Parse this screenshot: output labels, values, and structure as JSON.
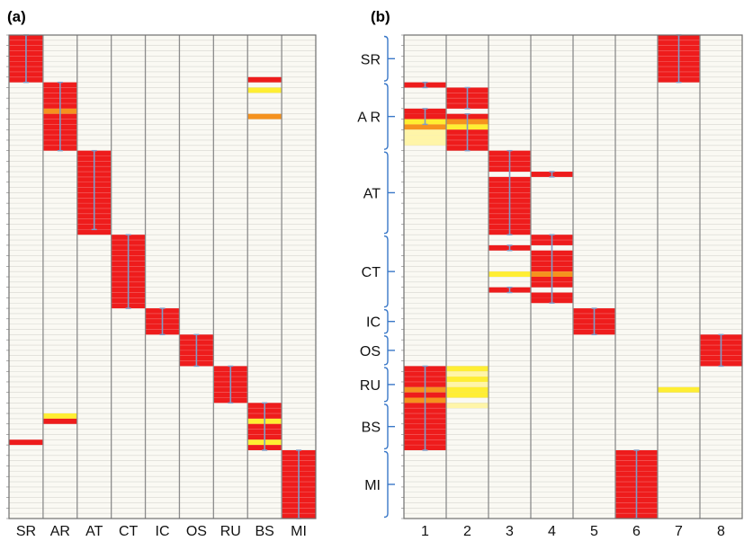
{
  "colors": {
    "background": "#faf9f3",
    "row_line": "#d6d6d0",
    "column_line": "#8c8c8c",
    "frame": "#6e6e6e",
    "strong": "#ee1c1c",
    "medium": "#f5921e",
    "weak": "#ffee33",
    "faint": "#fff5a8",
    "marker": "#7f9cc8",
    "bracket": "#3a78c8"
  },
  "chart_data": [
    {
      "type": "heatmap",
      "panel": "(a)",
      "columns": [
        "SR",
        "AR",
        "AT",
        "CT",
        "IC",
        "OS",
        "RU",
        "BS",
        "MI"
      ],
      "n_rows": 92,
      "cells": [
        {
          "col": 0,
          "rows": [
            0,
            8
          ],
          "level": "strong"
        },
        {
          "col": 0,
          "rows": [
            77,
            77
          ],
          "level": "strong"
        },
        {
          "col": 1,
          "rows": [
            9,
            13
          ],
          "level": "strong"
        },
        {
          "col": 1,
          "rows": [
            14,
            14
          ],
          "level": "medium"
        },
        {
          "col": 1,
          "rows": [
            15,
            21
          ],
          "level": "strong"
        },
        {
          "col": 1,
          "rows": [
            72,
            72
          ],
          "level": "weak"
        },
        {
          "col": 1,
          "rows": [
            73,
            73
          ],
          "level": "strong"
        },
        {
          "col": 2,
          "rows": [
            22,
            37
          ],
          "level": "strong"
        },
        {
          "col": 3,
          "rows": [
            38,
            51
          ],
          "level": "strong"
        },
        {
          "col": 4,
          "rows": [
            52,
            56
          ],
          "level": "strong"
        },
        {
          "col": 5,
          "rows": [
            57,
            62
          ],
          "level": "strong"
        },
        {
          "col": 6,
          "rows": [
            63,
            69
          ],
          "level": "strong"
        },
        {
          "col": 7,
          "rows": [
            8,
            8
          ],
          "level": "strong"
        },
        {
          "col": 7,
          "rows": [
            10,
            10
          ],
          "level": "weak"
        },
        {
          "col": 7,
          "rows": [
            15,
            15
          ],
          "level": "medium"
        },
        {
          "col": 7,
          "rows": [
            70,
            72
          ],
          "level": "strong"
        },
        {
          "col": 7,
          "rows": [
            73,
            73
          ],
          "level": "weak"
        },
        {
          "col": 7,
          "rows": [
            74,
            76
          ],
          "level": "strong"
        },
        {
          "col": 7,
          "rows": [
            77,
            77
          ],
          "level": "weak"
        },
        {
          "col": 7,
          "rows": [
            78,
            78
          ],
          "level": "strong"
        },
        {
          "col": 8,
          "rows": [
            79,
            91
          ],
          "level": "strong"
        }
      ],
      "markers": [
        {
          "col": 0,
          "rows": [
            0,
            9
          ]
        },
        {
          "col": 1,
          "rows": [
            9,
            22
          ]
        },
        {
          "col": 2,
          "rows": [
            22,
            37
          ]
        },
        {
          "col": 3,
          "rows": [
            38,
            52
          ]
        },
        {
          "col": 4,
          "rows": [
            52,
            57
          ]
        },
        {
          "col": 5,
          "rows": [
            57,
            63
          ]
        },
        {
          "col": 6,
          "rows": [
            63,
            70
          ]
        },
        {
          "col": 7,
          "rows": [
            70,
            79
          ]
        },
        {
          "col": 8,
          "rows": [
            79,
            92
          ]
        }
      ]
    },
    {
      "type": "heatmap",
      "panel": "(b)",
      "columns": [
        "1",
        "2",
        "3",
        "4",
        "5",
        "6",
        "7",
        "8"
      ],
      "row_groups": [
        {
          "label": "SR",
          "rows": [
            0,
            8
          ]
        },
        {
          "label": "A R",
          "rows": [
            9,
            21
          ]
        },
        {
          "label": "AT",
          "rows": [
            22,
            37
          ]
        },
        {
          "label": "CT",
          "rows": [
            38,
            51
          ]
        },
        {
          "label": "IC",
          "rows": [
            52,
            56
          ]
        },
        {
          "label": "OS",
          "rows": [
            57,
            62
          ]
        },
        {
          "label": "RU",
          "rows": [
            63,
            69
          ]
        },
        {
          "label": "BS",
          "rows": [
            70,
            78
          ]
        },
        {
          "label": "MI",
          "rows": [
            79,
            91
          ]
        }
      ],
      "n_rows": 92,
      "cells": [
        {
          "col": 0,
          "rows": [
            9,
            9
          ],
          "level": "strong"
        },
        {
          "col": 0,
          "rows": [
            14,
            14
          ],
          "level": "strong"
        },
        {
          "col": 0,
          "rows": [
            15,
            15
          ],
          "level": "strong"
        },
        {
          "col": 0,
          "rows": [
            16,
            16
          ],
          "level": "weak"
        },
        {
          "col": 0,
          "rows": [
            17,
            17
          ],
          "level": "medium"
        },
        {
          "col": 0,
          "rows": [
            18,
            18
          ],
          "level": "faint"
        },
        {
          "col": 0,
          "rows": [
            19,
            19
          ],
          "level": "faint"
        },
        {
          "col": 0,
          "rows": [
            20,
            20
          ],
          "level": "faint"
        },
        {
          "col": 0,
          "rows": [
            63,
            66
          ],
          "level": "strong"
        },
        {
          "col": 0,
          "rows": [
            67,
            67
          ],
          "level": "medium"
        },
        {
          "col": 0,
          "rows": [
            68,
            68
          ],
          "level": "strong"
        },
        {
          "col": 0,
          "rows": [
            69,
            69
          ],
          "level": "medium"
        },
        {
          "col": 0,
          "rows": [
            70,
            78
          ],
          "level": "strong"
        },
        {
          "col": 1,
          "rows": [
            10,
            13
          ],
          "level": "strong"
        },
        {
          "col": 1,
          "rows": [
            15,
            15
          ],
          "level": "strong"
        },
        {
          "col": 1,
          "rows": [
            16,
            16
          ],
          "level": "medium"
        },
        {
          "col": 1,
          "rows": [
            17,
            17
          ],
          "level": "weak"
        },
        {
          "col": 1,
          "rows": [
            18,
            21
          ],
          "level": "strong"
        },
        {
          "col": 1,
          "rows": [
            63,
            63
          ],
          "level": "weak"
        },
        {
          "col": 1,
          "rows": [
            64,
            64
          ],
          "level": "faint"
        },
        {
          "col": 1,
          "rows": [
            65,
            65
          ],
          "level": "weak"
        },
        {
          "col": 1,
          "rows": [
            66,
            66
          ],
          "level": "faint"
        },
        {
          "col": 1,
          "rows": [
            67,
            67
          ],
          "level": "weak"
        },
        {
          "col": 1,
          "rows": [
            68,
            68
          ],
          "level": "weak"
        },
        {
          "col": 1,
          "rows": [
            70,
            70
          ],
          "level": "faint"
        },
        {
          "col": 2,
          "rows": [
            22,
            25
          ],
          "level": "strong"
        },
        {
          "col": 2,
          "rows": [
            27,
            37
          ],
          "level": "strong"
        },
        {
          "col": 2,
          "rows": [
            40,
            40
          ],
          "level": "strong"
        },
        {
          "col": 2,
          "rows": [
            45,
            45
          ],
          "level": "weak"
        },
        {
          "col": 2,
          "rows": [
            48,
            48
          ],
          "level": "strong"
        },
        {
          "col": 3,
          "rows": [
            26,
            26
          ],
          "level": "strong"
        },
        {
          "col": 3,
          "rows": [
            38,
            39
          ],
          "level": "strong"
        },
        {
          "col": 3,
          "rows": [
            41,
            44
          ],
          "level": "strong"
        },
        {
          "col": 3,
          "rows": [
            45,
            45
          ],
          "level": "medium"
        },
        {
          "col": 3,
          "rows": [
            46,
            47
          ],
          "level": "strong"
        },
        {
          "col": 3,
          "rows": [
            49,
            49
          ],
          "level": "strong"
        },
        {
          "col": 3,
          "rows": [
            50,
            50
          ],
          "level": "strong"
        },
        {
          "col": 4,
          "rows": [
            52,
            56
          ],
          "level": "strong"
        },
        {
          "col": 5,
          "rows": [
            79,
            91
          ],
          "level": "strong"
        },
        {
          "col": 6,
          "rows": [
            0,
            8
          ],
          "level": "strong"
        },
        {
          "col": 6,
          "rows": [
            67,
            67
          ],
          "level": "weak"
        },
        {
          "col": 7,
          "rows": [
            57,
            62
          ],
          "level": "strong"
        }
      ],
      "markers": [
        {
          "col": 0,
          "rows": [
            9,
            10
          ]
        },
        {
          "col": 0,
          "rows": [
            14,
            17
          ]
        },
        {
          "col": 0,
          "rows": [
            63,
            79
          ]
        },
        {
          "col": 1,
          "rows": [
            10,
            14
          ]
        },
        {
          "col": 1,
          "rows": [
            15,
            22
          ]
        },
        {
          "col": 2,
          "rows": [
            22,
            38
          ]
        },
        {
          "col": 2,
          "rows": [
            40,
            41
          ]
        },
        {
          "col": 2,
          "rows": [
            48,
            49
          ]
        },
        {
          "col": 3,
          "rows": [
            26,
            27
          ]
        },
        {
          "col": 3,
          "rows": [
            38,
            51
          ]
        },
        {
          "col": 4,
          "rows": [
            52,
            57
          ]
        },
        {
          "col": 5,
          "rows": [
            79,
            92
          ]
        },
        {
          "col": 6,
          "rows": [
            0,
            9
          ]
        },
        {
          "col": 7,
          "rows": [
            57,
            63
          ]
        }
      ]
    }
  ]
}
